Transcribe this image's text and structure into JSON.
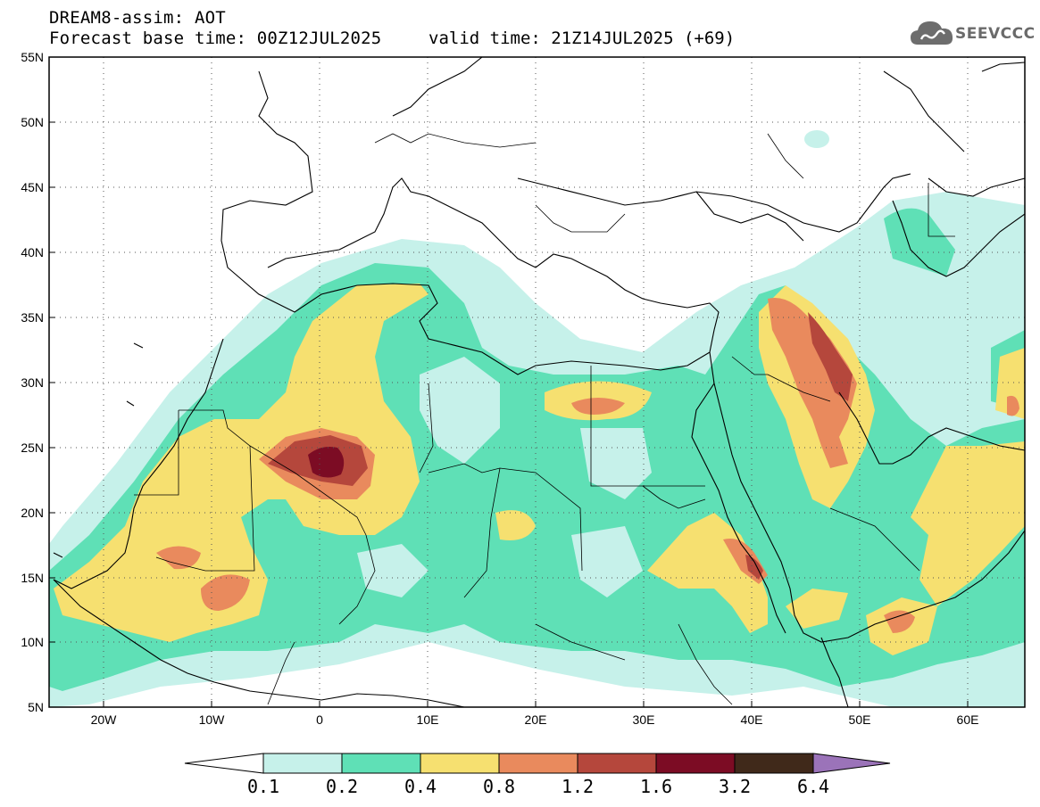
{
  "header": {
    "title": "DREAM8-assim: AOT",
    "base_time": "Forecast base time: 00Z12JUL2025",
    "valid_time": "valid time: 21Z14JUL2025 (+69)"
  },
  "logo": {
    "text": "SEEVCCC",
    "icon": "cloud-icon"
  },
  "map": {
    "variable": "AOT",
    "lon_range": [
      -25,
      65
    ],
    "lat_range": [
      5,
      55
    ],
    "grid": "dotted",
    "lon_ticks": [
      "20W",
      "10W",
      "0",
      "10E",
      "20E",
      "30E",
      "40E",
      "50E",
      "60E"
    ],
    "lat_ticks": [
      "55N",
      "50N",
      "45N",
      "40N",
      "35N",
      "30N",
      "25N",
      "20N",
      "15N",
      "10N",
      "5N"
    ]
  },
  "colorbar": {
    "levels": [
      "0.1",
      "0.2",
      "0.4",
      "0.8",
      "1.2",
      "1.6",
      "3.2",
      "6.4"
    ],
    "colors": [
      "#ffffff",
      "#c6f1ea",
      "#5fe0b6",
      "#f6e070",
      "#e98a5d",
      "#b5473c",
      "#7c0c24",
      "#40291a",
      "#9b73b9"
    ]
  },
  "colors": {
    "aot_0_1": "#c6f1ea",
    "aot_0_2": "#5fe0b6",
    "aot_0_4": "#f6e070",
    "aot_0_8": "#e98a5d",
    "aot_1_2": "#b5473c",
    "aot_1_6": "#7c0c24",
    "aot_3_2": "#40291a",
    "aot_6_4": "#9b73b9"
  }
}
